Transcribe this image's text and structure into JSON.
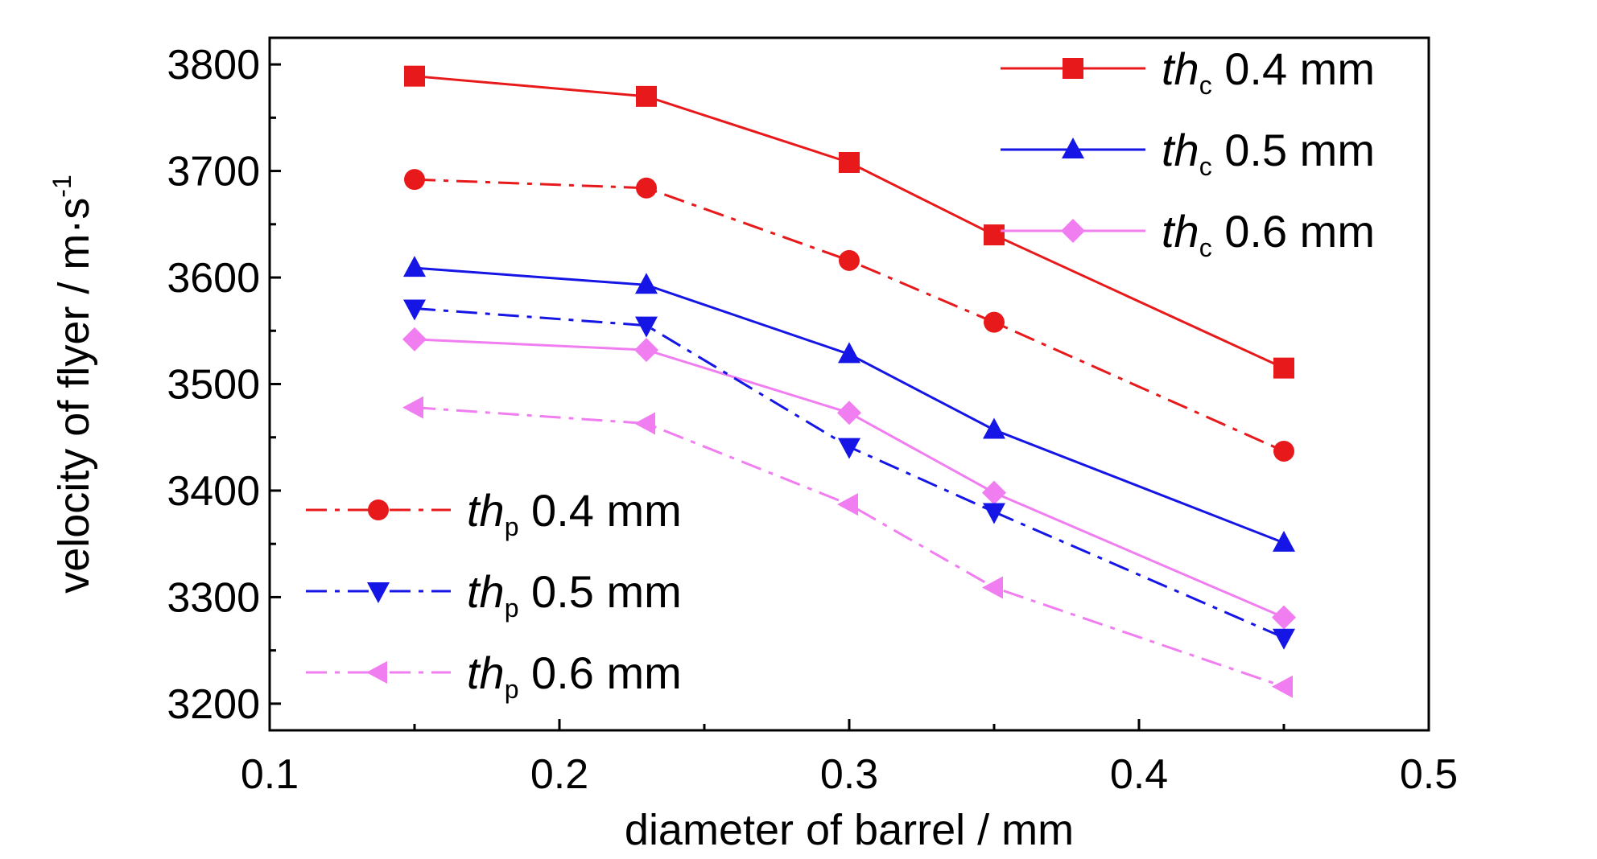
{
  "chart_data": {
    "type": "line",
    "xlabel": "diameter of barrel / mm",
    "ylabel": "velocity of flyer / m·s",
    "ylabel_sup": "-1",
    "xlim": [
      0.1,
      0.5
    ],
    "ylim": [
      3175,
      3825
    ],
    "xticks": [
      0.1,
      0.2,
      0.3,
      0.4,
      0.5
    ],
    "xtick_labels": [
      "0.1",
      "0.2",
      "0.3",
      "0.4",
      "0.5"
    ],
    "yticks": [
      3200,
      3300,
      3400,
      3500,
      3600,
      3700,
      3800
    ],
    "ytick_labels": [
      "3200",
      "3300",
      "3400",
      "3500",
      "3600",
      "3700",
      "3800"
    ],
    "grid": false,
    "x": [
      0.15,
      0.23,
      0.3,
      0.35,
      0.45
    ],
    "legend_top_right": [
      "thc_04",
      "thc_05",
      "thc_06"
    ],
    "legend_bottom_left": [
      "thp_04",
      "thp_05",
      "thp_06"
    ],
    "series": [
      {
        "id": "thc_04",
        "label_main": "th",
        "label_sub": "c",
        "label_rest": " 0.4 mm",
        "color": "#e8191b",
        "dash": "solid",
        "marker": "square",
        "values": [
          3789,
          3770,
          3708,
          3640,
          3515
        ]
      },
      {
        "id": "thc_05",
        "label_main": "th",
        "label_sub": "c",
        "label_rest": " 0.5 mm",
        "color": "#1515e6",
        "dash": "solid",
        "marker": "triangle-up",
        "values": [
          3609,
          3593,
          3528,
          3457,
          3351
        ]
      },
      {
        "id": "thc_06",
        "label_main": "th",
        "label_sub": "c",
        "label_rest": " 0.6 mm",
        "color": "#f07ef0",
        "dash": "solid",
        "marker": "diamond",
        "values": [
          3542,
          3532,
          3473,
          3398,
          3281
        ]
      },
      {
        "id": "thp_04",
        "label_main": "th",
        "label_sub": "p",
        "label_rest": " 0.4 mm",
        "color": "#e8191b",
        "dash": "dashdot",
        "marker": "circle",
        "values": [
          3692,
          3684,
          3616,
          3558,
          3437
        ]
      },
      {
        "id": "thp_05",
        "label_main": "th",
        "label_sub": "p",
        "label_rest": " 0.5 mm",
        "color": "#1515e6",
        "dash": "dashdot",
        "marker": "triangle-down",
        "values": [
          3571,
          3555,
          3441,
          3380,
          3262
        ]
      },
      {
        "id": "thp_06",
        "label_main": "th",
        "label_sub": "p",
        "label_rest": " 0.6 mm",
        "color": "#f07ef0",
        "dash": "dashdot",
        "marker": "triangle-left",
        "values": [
          3478,
          3463,
          3387,
          3309,
          3216
        ]
      }
    ]
  }
}
